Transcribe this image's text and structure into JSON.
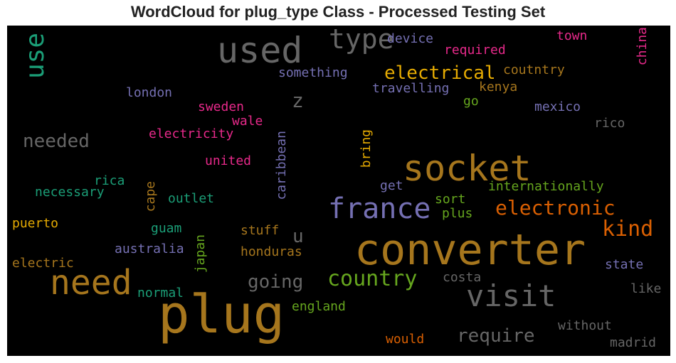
{
  "title": "WordCloud for plug_type Class - Processed Testing Set",
  "words": [
    {
      "id": "plug",
      "text": "plug",
      "color": "#a6761d"
    },
    {
      "id": "converter",
      "text": "converter",
      "color": "#a6761d"
    },
    {
      "id": "socket",
      "text": "socket",
      "color": "#a6761d"
    },
    {
      "id": "used",
      "text": "used",
      "color": "#666666"
    },
    {
      "id": "need",
      "text": "need",
      "color": "#a6761d"
    },
    {
      "id": "france",
      "text": "france",
      "color": "#7570b3"
    },
    {
      "id": "visit",
      "text": "visit",
      "color": "#666666"
    },
    {
      "id": "type",
      "text": "type",
      "color": "#666666"
    },
    {
      "id": "use",
      "text": "use",
      "color": "#1b9e77"
    },
    {
      "id": "electrical",
      "text": "electrical",
      "color": "#e6ab02"
    },
    {
      "id": "electronic",
      "text": "electronic",
      "color": "#d95f02"
    },
    {
      "id": "kind",
      "text": "kind",
      "color": "#d95f02"
    },
    {
      "id": "country",
      "text": "country",
      "color": "#66a61e"
    },
    {
      "id": "needed",
      "text": "needed",
      "color": "#666666"
    },
    {
      "id": "going",
      "text": "going",
      "color": "#666666"
    },
    {
      "id": "require",
      "text": "require",
      "color": "#666666"
    },
    {
      "id": "z",
      "text": "z",
      "color": "#666666"
    },
    {
      "id": "u",
      "text": "u",
      "color": "#666666"
    },
    {
      "id": "device",
      "text": "device",
      "color": "#7570b3"
    },
    {
      "id": "required",
      "text": "required",
      "color": "#e7298a"
    },
    {
      "id": "town",
      "text": "town",
      "color": "#e7298a"
    },
    {
      "id": "china",
      "text": "china",
      "color": "#e7298a"
    },
    {
      "id": "something",
      "text": "something",
      "color": "#7570b3"
    },
    {
      "id": "coutntry",
      "text": "coutntry",
      "color": "#a6761d"
    },
    {
      "id": "travelling",
      "text": "travelling",
      "color": "#7570b3"
    },
    {
      "id": "kenya",
      "text": "kenya",
      "color": "#a6761d"
    },
    {
      "id": "london",
      "text": "london",
      "color": "#7570b3"
    },
    {
      "id": "go",
      "text": "go",
      "color": "#66a61e"
    },
    {
      "id": "mexico",
      "text": "mexico",
      "color": "#7570b3"
    },
    {
      "id": "sweden",
      "text": "sweden",
      "color": "#e7298a"
    },
    {
      "id": "wale",
      "text": "wale",
      "color": "#e7298a"
    },
    {
      "id": "rico",
      "text": "rico",
      "color": "#666666"
    },
    {
      "id": "electricity",
      "text": "electricity",
      "color": "#e7298a"
    },
    {
      "id": "caribbean",
      "text": "caribbean",
      "color": "#7570b3"
    },
    {
      "id": "bring",
      "text": "bring",
      "color": "#e6ab02"
    },
    {
      "id": "united",
      "text": "united",
      "color": "#e7298a"
    },
    {
      "id": "rica",
      "text": "rica",
      "color": "#1b9e77"
    },
    {
      "id": "necessary",
      "text": "necessary",
      "color": "#1b9e77"
    },
    {
      "id": "cape",
      "text": "cape",
      "color": "#a6761d"
    },
    {
      "id": "outlet",
      "text": "outlet",
      "color": "#1b9e77"
    },
    {
      "id": "get",
      "text": "get",
      "color": "#7570b3"
    },
    {
      "id": "internationally",
      "text": "internationally",
      "color": "#66a61e"
    },
    {
      "id": "sort",
      "text": "sort",
      "color": "#66a61e"
    },
    {
      "id": "plus",
      "text": "plus",
      "color": "#66a61e"
    },
    {
      "id": "puerto",
      "text": "puerto",
      "color": "#e6ab02"
    },
    {
      "id": "guam",
      "text": "guam",
      "color": "#1b9e77"
    },
    {
      "id": "stuff",
      "text": "stuff",
      "color": "#a6761d"
    },
    {
      "id": "japan",
      "text": "japan",
      "color": "#66a61e"
    },
    {
      "id": "australia",
      "text": "australia",
      "color": "#7570b3"
    },
    {
      "id": "honduras",
      "text": "honduras",
      "color": "#a6761d"
    },
    {
      "id": "electric",
      "text": "electric",
      "color": "#a6761d"
    },
    {
      "id": "state",
      "text": "state",
      "color": "#7570b3"
    },
    {
      "id": "costa",
      "text": "costa",
      "color": "#666666"
    },
    {
      "id": "like",
      "text": "like",
      "color": "#666666"
    },
    {
      "id": "normal",
      "text": "normal",
      "color": "#1b9e77"
    },
    {
      "id": "england",
      "text": "england",
      "color": "#66a61e"
    },
    {
      "id": "without",
      "text": "without",
      "color": "#666666"
    },
    {
      "id": "would",
      "text": "would",
      "color": "#d95f02"
    },
    {
      "id": "madrid",
      "text": "madrid",
      "color": "#666666"
    }
  ]
}
